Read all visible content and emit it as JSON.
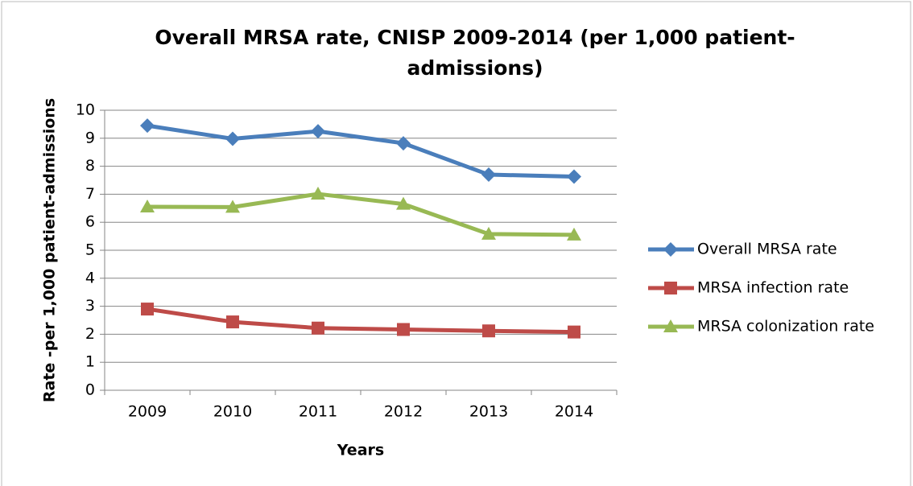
{
  "chart_data": {
    "type": "line",
    "title": "Overall MRSA rate, CNISP 2009-2014 (per 1,000 patient-admissions)",
    "x_label": "Years",
    "y_label": "Rate -per 1,000 patient-admissions",
    "categories": [
      "2009",
      "2010",
      "2011",
      "2012",
      "2013",
      "2014"
    ],
    "series": [
      {
        "name": "Overall MRSA rate",
        "color": "#4a7ebb",
        "marker": "diamond",
        "values": [
          9.45,
          8.98,
          9.25,
          8.82,
          7.7,
          7.63
        ]
      },
      {
        "name": "MRSA infection rate",
        "color": "#be4b48",
        "marker": "square",
        "values": [
          2.9,
          2.44,
          2.22,
          2.17,
          2.12,
          2.08
        ]
      },
      {
        "name": "MRSA colonization rate",
        "color": "#98b954",
        "marker": "triangle",
        "values": [
          6.55,
          6.54,
          7.01,
          6.65,
          5.58,
          5.55
        ]
      }
    ],
    "ylim": [
      0,
      10
    ],
    "yticks": [
      0,
      1,
      2,
      3,
      4,
      5,
      6,
      7,
      8,
      9,
      10
    ],
    "grid": true,
    "legend": "right"
  }
}
